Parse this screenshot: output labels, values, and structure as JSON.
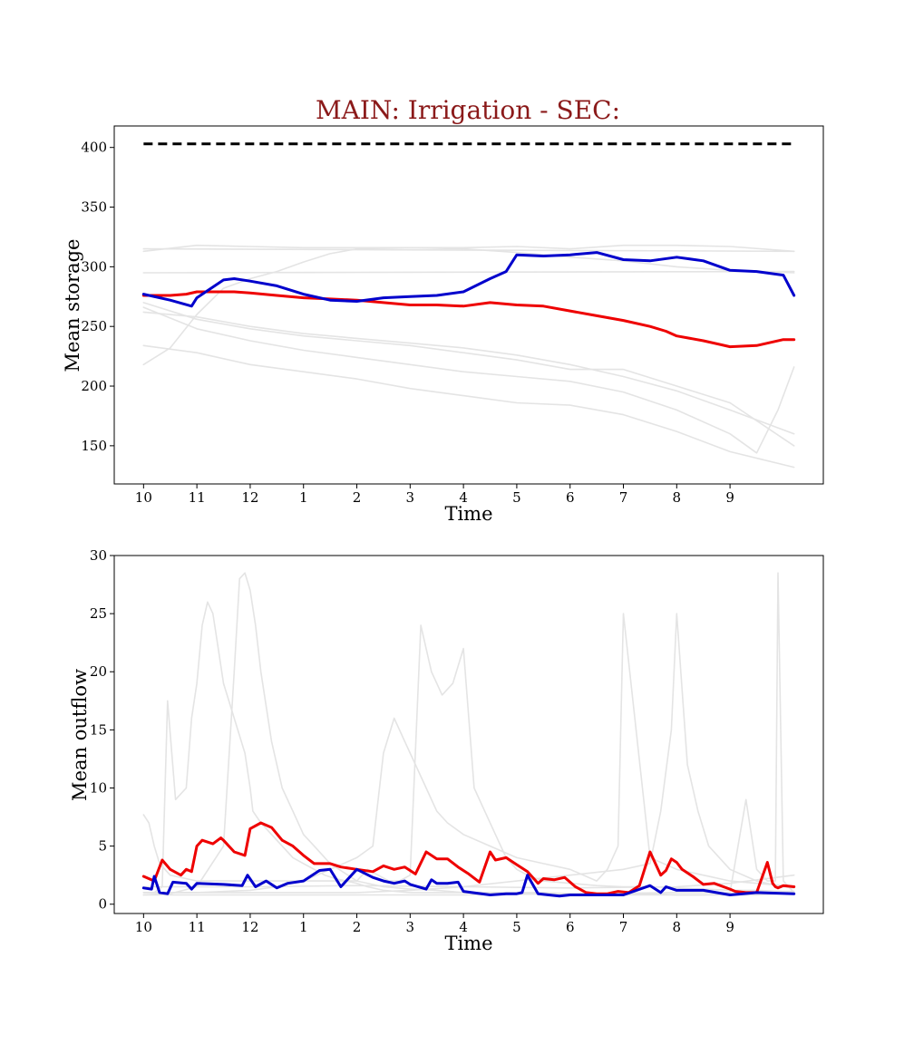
{
  "figure": {
    "title": "MAIN: Irrigation - SEC:"
  },
  "chart_data": [
    {
      "type": "line",
      "id": "storage",
      "xlabel": "Time",
      "ylabel": "Mean storage",
      "x_tick_labels": [
        "10",
        "11",
        "12",
        "1",
        "2",
        "3",
        "4",
        "5",
        "6",
        "7",
        "8",
        "9"
      ],
      "y_ticks": [
        150,
        200,
        250,
        300,
        350,
        400
      ],
      "xlim": [
        -0.55,
        12.75
      ],
      "ylim": [
        118,
        418
      ],
      "colors": {
        "red": "#ee0000",
        "blue": "#0000cc",
        "gray": "#e4e4e4",
        "capacity": "#000000"
      },
      "capacity_line": {
        "x": [
          0,
          12.2
        ],
        "y": [
          403,
          403
        ]
      },
      "series": [
        {
          "color": "red",
          "x": [
            0,
            0.5,
            0.8,
            1,
            1.5,
            1.7,
            2,
            2.5,
            3,
            3.5,
            4,
            4.5,
            5,
            5.5,
            6,
            6.5,
            7,
            7.5,
            8,
            8.5,
            9,
            9.5,
            9.8,
            10,
            10.5,
            11,
            11.5,
            12,
            12.2
          ],
          "y": [
            276,
            276,
            277,
            279,
            279,
            279,
            278,
            276,
            274,
            273,
            272,
            270,
            268,
            268,
            267,
            270,
            268,
            267,
            263,
            259,
            255,
            250,
            246,
            242,
            238,
            233,
            234,
            239,
            239
          ]
        },
        {
          "color": "blue",
          "x": [
            0,
            0.5,
            0.9,
            1,
            1.5,
            1.7,
            2,
            2.5,
            3,
            3.5,
            4,
            4.5,
            5,
            5.5,
            6,
            6.5,
            6.8,
            7,
            7.5,
            8,
            8.5,
            9,
            9.5,
            10,
            10.5,
            11,
            11.5,
            12,
            12.2
          ],
          "y": [
            277,
            272,
            267,
            274,
            289,
            290,
            288,
            284,
            277,
            272,
            271,
            274,
            275,
            276,
            279,
            290,
            296,
            310,
            309,
            310,
            312,
            306,
            305,
            308,
            305,
            297,
            296,
            293,
            276
          ]
        },
        {
          "color": "gray",
          "x": [
            0,
            12.2
          ],
          "y": [
            315,
            313
          ]
        },
        {
          "color": "gray",
          "x": [
            0,
            1,
            2,
            3,
            4,
            5,
            6,
            7,
            8,
            9,
            10,
            11,
            12.2
          ],
          "y": [
            313,
            318,
            317,
            316,
            316,
            316,
            316,
            317,
            315,
            318,
            318,
            317,
            313
          ]
        },
        {
          "color": "gray",
          "x": [
            0,
            0.5,
            1,
            1.5,
            2,
            2.5,
            3,
            3.5,
            4,
            5,
            6,
            7,
            8,
            9,
            10,
            11,
            12.2
          ],
          "y": [
            218,
            232,
            260,
            282,
            290,
            296,
            304,
            311,
            315,
            316,
            315,
            312,
            308,
            305,
            300,
            297,
            295
          ]
        },
        {
          "color": "gray",
          "x": [
            0,
            12.2
          ],
          "y": [
            295,
            296
          ]
        },
        {
          "color": "gray",
          "x": [
            0,
            1,
            2,
            3,
            4,
            5,
            6,
            7,
            8,
            9,
            10,
            11,
            12.2
          ],
          "y": [
            262,
            258,
            250,
            244,
            240,
            236,
            232,
            226,
            218,
            208,
            196,
            180,
            160
          ]
        },
        {
          "color": "gray",
          "x": [
            0,
            1,
            2,
            3,
            4,
            5,
            6,
            7,
            8,
            9,
            10,
            11,
            12.2
          ],
          "y": [
            270,
            256,
            248,
            242,
            238,
            234,
            228,
            222,
            214,
            214,
            200,
            186,
            150
          ]
        },
        {
          "color": "gray",
          "x": [
            0,
            1,
            2,
            3,
            4,
            5,
            6,
            7,
            8,
            9,
            10,
            11,
            12.2
          ],
          "y": [
            234,
            228,
            218,
            212,
            206,
            198,
            192,
            186,
            184,
            176,
            162,
            145,
            132
          ]
        },
        {
          "color": "gray",
          "x": [
            0,
            1,
            2,
            3,
            4,
            5,
            6,
            7,
            8,
            9,
            10,
            11,
            11.5,
            11.9,
            12.2
          ],
          "y": [
            266,
            248,
            238,
            230,
            224,
            218,
            212,
            208,
            204,
            195,
            180,
            160,
            144,
            180,
            216
          ]
        }
      ]
    },
    {
      "type": "line",
      "id": "outflow",
      "xlabel": "Time",
      "ylabel": "Mean outflow",
      "x_tick_labels": [
        "10",
        "11",
        "12",
        "1",
        "2",
        "3",
        "4",
        "5",
        "6",
        "7",
        "8",
        "9"
      ],
      "y_ticks": [
        0,
        5,
        10,
        15,
        20,
        25,
        30
      ],
      "xlim": [
        -0.55,
        12.75
      ],
      "ylim": [
        -0.8,
        30
      ],
      "colors": {
        "red": "#ee0000",
        "blue": "#0000cc",
        "gray": "#e4e4e4"
      },
      "series": [
        {
          "color": "red",
          "x": [
            0,
            0.2,
            0.35,
            0.5,
            0.7,
            0.8,
            0.9,
            1,
            1.1,
            1.3,
            1.45,
            1.5,
            1.7,
            1.9,
            2,
            2.2,
            2.4,
            2.6,
            2.8,
            3,
            3.2,
            3.5,
            3.7,
            4,
            4.3,
            4.5,
            4.7,
            4.9,
            5.1,
            5.3,
            5.5,
            5.7,
            5.9,
            6.1,
            6.3,
            6.5,
            6.6,
            6.8,
            7,
            7.2,
            7.4,
            7.5,
            7.7,
            7.9,
            8.1,
            8.3,
            8.5,
            8.7,
            8.9,
            9.1,
            9.3,
            9.5,
            9.7,
            9.8,
            9.9,
            10,
            10.1,
            10.3,
            10.5,
            10.7,
            11,
            11.1,
            11.3,
            11.5,
            11.7,
            11.8,
            11.85,
            11.9,
            12,
            12.2
          ],
          "y": [
            2.4,
            2.0,
            3.8,
            3.0,
            2.5,
            3.0,
            2.8,
            5.0,
            5.5,
            5.2,
            5.7,
            5.5,
            4.5,
            4.2,
            6.5,
            7.0,
            6.6,
            5.5,
            5.0,
            4.2,
            3.5,
            3.5,
            3.2,
            3.0,
            2.8,
            3.3,
            3.0,
            3.2,
            2.6,
            4.5,
            3.9,
            3.9,
            3.2,
            2.6,
            1.9,
            4.5,
            3.8,
            4.0,
            3.4,
            2.8,
            1.8,
            2.2,
            2.1,
            2.3,
            1.5,
            1.0,
            0.9,
            0.9,
            1.1,
            1.0,
            1.6,
            4.5,
            2.5,
            2.9,
            3.9,
            3.6,
            3.0,
            2.4,
            1.7,
            1.8,
            1.3,
            1.1,
            1.0,
            1.0,
            3.6,
            1.8,
            1.5,
            1.4,
            1.6,
            1.5
          ]
        },
        {
          "color": "blue",
          "x": [
            0,
            0.15,
            0.2,
            0.3,
            0.45,
            0.55,
            0.8,
            0.9,
            1,
            1.5,
            1.85,
            1.95,
            2.1,
            2.3,
            2.5,
            2.7,
            3,
            3.3,
            3.5,
            3.7,
            4,
            4.3,
            4.5,
            4.7,
            4.9,
            5,
            5.3,
            5.4,
            5.5,
            5.7,
            5.9,
            6,
            6.5,
            6.8,
            7,
            7.1,
            7.2,
            7.4,
            7.6,
            7.8,
            8,
            8.5,
            9,
            9.5,
            9.7,
            9.8,
            10,
            10.5,
            11,
            11.5,
            12.2
          ],
          "y": [
            1.4,
            1.3,
            2.4,
            1.0,
            0.9,
            1.9,
            1.8,
            1.3,
            1.8,
            1.7,
            1.6,
            2.5,
            1.5,
            2.0,
            1.4,
            1.8,
            2.0,
            2.9,
            3.0,
            1.5,
            3.0,
            2.3,
            2.0,
            1.8,
            2.0,
            1.7,
            1.3,
            2.1,
            1.8,
            1.8,
            1.9,
            1.1,
            0.8,
            0.9,
            0.9,
            1.0,
            2.5,
            0.9,
            0.8,
            0.7,
            0.8,
            0.8,
            0.8,
            1.6,
            1.0,
            1.5,
            1.2,
            1.2,
            0.8,
            1.0,
            0.9
          ]
        },
        {
          "color": "gray",
          "x": [
            0,
            0.2,
            0.35,
            0.45,
            0.6,
            0.8,
            0.9,
            1,
            1.1,
            1.2,
            1.3,
            1.4,
            1.5,
            1.7,
            1.9,
            2,
            2.05,
            2.2,
            2.4,
            2.6,
            2.8,
            3,
            3.2,
            3.4,
            3.6,
            3.8,
            4,
            4.2,
            4.5,
            5,
            5.5,
            6,
            6.5,
            7,
            7.5,
            8,
            8.5,
            9,
            9.5,
            10,
            10.5,
            11,
            11.5,
            12,
            12.2
          ],
          "y": [
            1,
            1,
            1.5,
            17.5,
            9,
            10,
            16,
            19,
            24,
            26,
            25,
            22,
            19,
            16,
            13,
            10,
            8,
            7,
            6,
            5,
            4,
            3.5,
            3,
            2.5,
            2.2,
            2,
            1.8,
            1.5,
            1.2,
            1,
            1,
            1,
            1,
            0.9,
            0.9,
            0.8,
            0.8,
            0.8,
            0.8,
            0.8,
            0.8,
            0.9,
            0.9,
            1,
            1
          ]
        },
        {
          "color": "gray",
          "x": [
            0,
            0.5,
            1,
            1.5,
            1.7,
            1.8,
            1.9,
            2,
            2.1,
            2.2,
            2.3,
            2.4,
            2.6,
            2.8,
            3,
            3.2,
            3.5,
            4,
            4.5,
            5,
            5.5,
            6,
            6.5,
            7,
            7.5,
            8,
            8.5,
            9,
            9.5,
            10,
            10.5,
            11,
            11.5,
            12,
            12.2
          ],
          "y": [
            0.8,
            0.9,
            1.5,
            5,
            20,
            28,
            28.5,
            27,
            24,
            20,
            17,
            14,
            10,
            8,
            6,
            5,
            3.5,
            2,
            1.5,
            1.3,
            1.2,
            1,
            1,
            1,
            1,
            0.9,
            0.9,
            0.9,
            0.9,
            0.8,
            0.8,
            0.8,
            0.8,
            0.9,
            0.9
          ]
        },
        {
          "color": "gray",
          "x": [
            0,
            0.1,
            0.2,
            0.3,
            0.5,
            1,
            1.5,
            2,
            2.5,
            3,
            3.5,
            4,
            4.2,
            4.4,
            4.6,
            4.8,
            5,
            5.2,
            5.4,
            5.6,
            5.8,
            6,
            6.2,
            6.4,
            6.6,
            6.8,
            7,
            7.2,
            7.5,
            8,
            8.5,
            9,
            9.5,
            10,
            10.5,
            11,
            11.5,
            12,
            12.2
          ],
          "y": [
            7.7,
            7,
            5,
            3.5,
            2.5,
            2,
            2,
            2,
            2,
            2,
            2,
            2,
            3,
            2.5,
            2,
            2,
            2.5,
            24,
            20,
            18,
            19,
            22,
            10,
            8,
            6,
            4,
            3,
            2.5,
            2,
            1.8,
            1.6,
            1.5,
            1.5,
            1.4,
            1.3,
            1.2,
            1.2,
            1.1,
            1.1
          ]
        },
        {
          "color": "gray",
          "x": [
            0,
            1,
            2,
            2.5,
            3,
            3.5,
            4,
            4.3,
            4.5,
            4.7,
            4.9,
            5,
            5.1,
            5.3,
            5.5,
            5.7,
            6,
            6.5,
            7,
            7.5,
            8,
            8.5,
            8.7,
            8.9,
            9,
            9.5,
            10,
            10.5,
            11,
            11.5,
            12,
            12.2
          ],
          "y": [
            1,
            1,
            1.2,
            1.5,
            2,
            3,
            4,
            5,
            13,
            16,
            14,
            13,
            12,
            10,
            8,
            7,
            6,
            5,
            4,
            3.5,
            3,
            2,
            3,
            5,
            25,
            4,
            3,
            2.5,
            2,
            1.8,
            1.6,
            1.5
          ]
        },
        {
          "color": "gray",
          "x": [
            0,
            1,
            2,
            3,
            4,
            5,
            6,
            7,
            8,
            9,
            9.5,
            9.7,
            9.9,
            10,
            10.2,
            10.4,
            10.6,
            11,
            11.5,
            12,
            12.2
          ],
          "y": [
            1,
            1,
            1,
            1,
            1,
            1.2,
            1.5,
            2,
            2.5,
            3,
            3.5,
            8,
            15,
            25,
            12,
            8,
            5,
            3,
            2,
            1.5,
            1.4
          ]
        },
        {
          "color": "gray",
          "x": [
            0,
            2,
            4,
            6,
            8,
            10,
            11,
            11.3,
            11.5,
            11.7,
            11.85,
            11.9,
            12,
            12.2
          ],
          "y": [
            0.8,
            0.8,
            0.8,
            0.8,
            0.9,
            1,
            1,
            9,
            3,
            2,
            2,
            28.5,
            2,
            1
          ]
        },
        {
          "color": "gray",
          "x": [
            0,
            2,
            4,
            6,
            8,
            10,
            11,
            12.2
          ],
          "y": [
            1.5,
            1.5,
            1.6,
            1.5,
            1.4,
            1.5,
            1.8,
            2.5
          ]
        }
      ]
    }
  ]
}
